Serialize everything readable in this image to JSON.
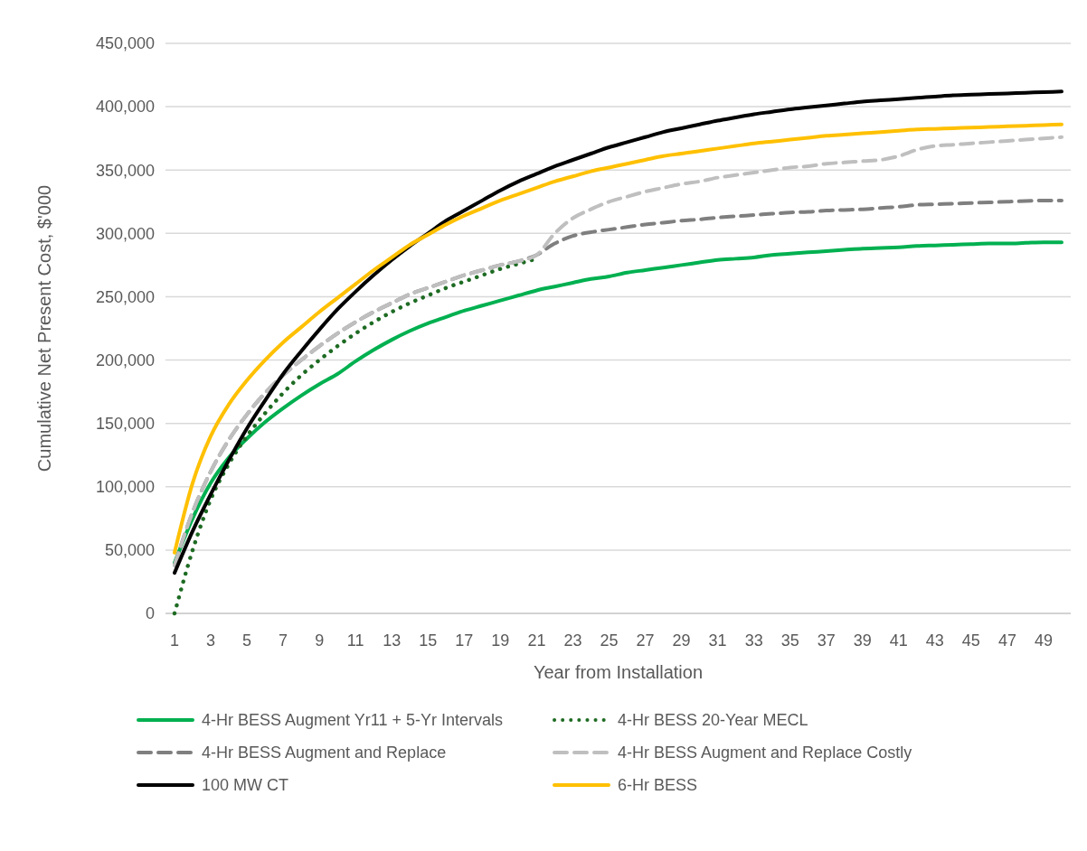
{
  "chart_data": {
    "type": "line",
    "xlabel": "Year from Installation",
    "ylabel": "Cumulative Net Present Cost, $'000",
    "x": [
      1,
      2,
      3,
      4,
      5,
      6,
      7,
      8,
      9,
      10,
      11,
      12,
      13,
      14,
      15,
      16,
      17,
      18,
      19,
      20,
      21,
      22,
      23,
      24,
      25,
      26,
      27,
      28,
      29,
      30,
      31,
      32,
      33,
      34,
      35,
      36,
      37,
      38,
      39,
      40,
      41,
      42,
      43,
      44,
      45,
      46,
      47,
      48,
      49,
      50
    ],
    "xlim": [
      0.5,
      50.5
    ],
    "xticks": [
      1,
      3,
      5,
      7,
      9,
      11,
      13,
      15,
      17,
      19,
      21,
      23,
      25,
      27,
      29,
      31,
      33,
      35,
      37,
      39,
      41,
      43,
      45,
      47,
      49
    ],
    "ylim": [
      0,
      450000
    ],
    "yticks": [
      {
        "value": 0,
        "label": "0"
      },
      {
        "value": 50000,
        "label": "50,000"
      },
      {
        "value": 100000,
        "label": "100,000"
      },
      {
        "value": 150000,
        "label": "150,000"
      },
      {
        "value": 200000,
        "label": "200,000"
      },
      {
        "value": 250000,
        "label": "250,000"
      },
      {
        "value": 300000,
        "label": "300,000"
      },
      {
        "value": 350000,
        "label": "350,000"
      },
      {
        "value": 400000,
        "label": "400,000"
      },
      {
        "value": 450000,
        "label": "450,000"
      }
    ],
    "grid": "y",
    "legend": "bottom",
    "series": [
      {
        "name": "4-Hr BESS Augment Yr11 + 5-Yr Intervals",
        "color": "#00b050",
        "line_style": "solid",
        "values": [
          40000,
          75000,
          103000,
          123000,
          138000,
          151000,
          162000,
          172000,
          181000,
          189000,
          199000,
          208000,
          216000,
          223000,
          229000,
          234000,
          239000,
          243000,
          247000,
          251000,
          255000,
          258000,
          261000,
          264000,
          266000,
          269000,
          271000,
          273000,
          275000,
          277000,
          279000,
          280000,
          281000,
          283000,
          284000,
          285000,
          286000,
          287000,
          288000,
          288500,
          289000,
          290000,
          290500,
          291000,
          291500,
          292000,
          292000,
          292500,
          293000,
          293000
        ]
      },
      {
        "name": "4-Hr BESS 20-Year MECL",
        "color": "#1e6b23",
        "line_style": "dotted",
        "values": [
          0,
          50000,
          90000,
          118000,
          140000,
          158000,
          174000,
          188000,
          200000,
          211000,
          221000,
          230000,
          238000,
          245000,
          251000,
          257000,
          262000,
          267000,
          272000,
          276000,
          280000,
          null,
          null,
          null,
          null,
          null,
          null,
          null,
          null,
          null,
          null,
          null,
          null,
          null,
          null,
          null,
          null,
          null,
          null,
          null,
          null,
          null,
          null,
          null,
          null,
          null,
          null,
          null,
          null,
          null
        ]
      },
      {
        "name": "4-Hr BESS Augment and Replace",
        "color": "#7f7f7f",
        "line_style": "dashed",
        "values": [
          38000,
          80000,
          112000,
          137000,
          157000,
          174000,
          188000,
          200000,
          211000,
          221000,
          230000,
          238000,
          245000,
          252000,
          257000,
          262000,
          267000,
          271000,
          275000,
          278000,
          283000,
          292000,
          298000,
          301000,
          303000,
          305000,
          307000,
          308500,
          310000,
          311000,
          312500,
          313500,
          314500,
          315500,
          316500,
          317000,
          318000,
          318500,
          319000,
          320000,
          321000,
          322500,
          323000,
          323500,
          324000,
          324500,
          325000,
          325500,
          326000,
          326000
        ]
      },
      {
        "name": "4-Hr BESS Augment and Replace Costly",
        "color": "#bfbfbf",
        "line_style": "dashed",
        "values": [
          38000,
          80000,
          112000,
          137000,
          157000,
          174000,
          188000,
          200000,
          211000,
          221000,
          230000,
          238000,
          245000,
          252000,
          257000,
          262000,
          267000,
          271000,
          275000,
          278000,
          283000,
          300000,
          312000,
          319000,
          325000,
          329000,
          333000,
          336000,
          339000,
          341000,
          344000,
          346000,
          348000,
          350000,
          352000,
          353000,
          355000,
          356000,
          357000,
          358000,
          361000,
          366000,
          369000,
          370000,
          371000,
          372000,
          373000,
          374000,
          375000,
          376000
        ]
      },
      {
        "name": "100 MW CT",
        "color": "#000000",
        "line_style": "solid",
        "values": [
          32000,
          65000,
          94000,
          121000,
          146000,
          168000,
          189000,
          207000,
          224000,
          240000,
          254000,
          267000,
          279000,
          290000,
          300000,
          310000,
          318000,
          326000,
          334000,
          341000,
          347000,
          353000,
          358000,
          363000,
          368000,
          372000,
          376000,
          380000,
          383000,
          386000,
          389000,
          391500,
          394000,
          396000,
          398000,
          399500,
          401000,
          402500,
          404000,
          405000,
          406000,
          407000,
          408000,
          409000,
          409500,
          410000,
          410500,
          411000,
          411500,
          412000
        ]
      },
      {
        "name": "6-Hr BESS",
        "color": "#ffc000",
        "line_style": "solid",
        "values": [
          48000,
          103000,
          140000,
          165000,
          184000,
          200000,
          214000,
          226000,
          238000,
          249000,
          260000,
          271000,
          281000,
          291000,
          299000,
          307000,
          314000,
          320000,
          326000,
          331000,
          336000,
          341000,
          345000,
          349000,
          352000,
          355000,
          358000,
          361000,
          363000,
          365000,
          367000,
          369000,
          371000,
          372500,
          374000,
          375500,
          377000,
          378000,
          379000,
          380000,
          381000,
          382000,
          382500,
          383000,
          383500,
          384000,
          384500,
          385000,
          385500,
          386000
        ]
      }
    ]
  }
}
